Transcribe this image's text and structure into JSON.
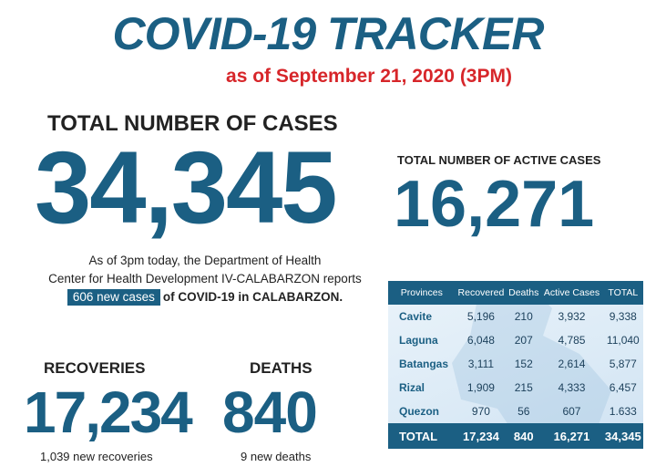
{
  "header": {
    "title": "COVID-19 TRACKER",
    "as_of": "as of September 21, 2020  (3PM)"
  },
  "total_cases": {
    "label": "TOTAL NUMBER OF CASES",
    "value": "34,345"
  },
  "active_cases": {
    "label": "TOTAL NUMBER OF ACTIVE CASES",
    "value": "16,271"
  },
  "description": {
    "line1": "As of 3pm today, the Department of Health",
    "line2": "Center for Health Development IV-CALABARZON reports",
    "new_cases": "606 new cases",
    "line3_rest": "of COVID-19 in CALABARZON."
  },
  "recoveries": {
    "label": "RECOVERIES",
    "value": "17,234",
    "sub": "1,039 new recoveries"
  },
  "deaths": {
    "label": "DEATHS",
    "value": "840",
    "sub": "9 new deaths"
  },
  "table": {
    "headers": [
      "Provinces",
      "Recovered",
      "Deaths",
      "Active Cases",
      "TOTAL"
    ],
    "rows": [
      [
        "Cavite",
        "5,196",
        "210",
        "3,932",
        "9,338"
      ],
      [
        "Laguna",
        "6,048",
        "207",
        "4,785",
        "11,040"
      ],
      [
        "Batangas",
        "3,111",
        "152",
        "2,614",
        "5,877"
      ],
      [
        "Rizal",
        "1,909",
        "215",
        "4,333",
        "6,457"
      ],
      [
        "Quezon",
        "970",
        "56",
        "607",
        "1.633"
      ]
    ],
    "total": [
      "TOTAL",
      "17,234",
      "840",
      "16,271",
      "34,345"
    ]
  },
  "colors": {
    "primary": "#1b5f83",
    "accent": "#d7262a"
  }
}
